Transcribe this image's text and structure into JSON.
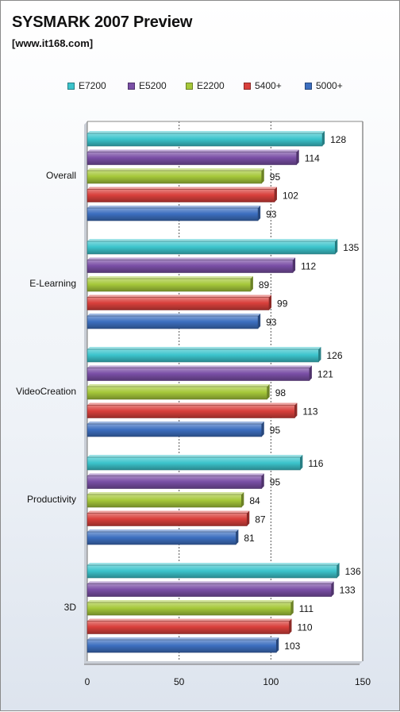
{
  "chart_data": {
    "type": "bar",
    "orientation": "horizontal",
    "title": "SYSMARK 2007 Preview",
    "subtitle": "[www.it168.com]",
    "categories": [
      "Overall",
      "E-Learning",
      "VideoCreation",
      "Productivity",
      "3D"
    ],
    "series": [
      {
        "name": "E7200",
        "color": "#3cc4cc",
        "values": [
          128,
          135,
          126,
          116,
          136
        ]
      },
      {
        "name": "E5200",
        "color": "#7a4fa6",
        "values": [
          114,
          112,
          121,
          95,
          133
        ]
      },
      {
        "name": "E2200",
        "color": "#a6c83a",
        "values": [
          95,
          89,
          98,
          84,
          111
        ]
      },
      {
        "name": "5400+",
        "color": "#d9403c",
        "values": [
          102,
          99,
          113,
          87,
          110
        ]
      },
      {
        "name": "5000+",
        "color": "#3d6fc0",
        "values": [
          93,
          93,
          95,
          81,
          103
        ]
      }
    ],
    "xlim": [
      0,
      150
    ],
    "xticks": [
      0,
      50,
      100,
      150
    ],
    "grid": true,
    "legend_position": "top"
  }
}
